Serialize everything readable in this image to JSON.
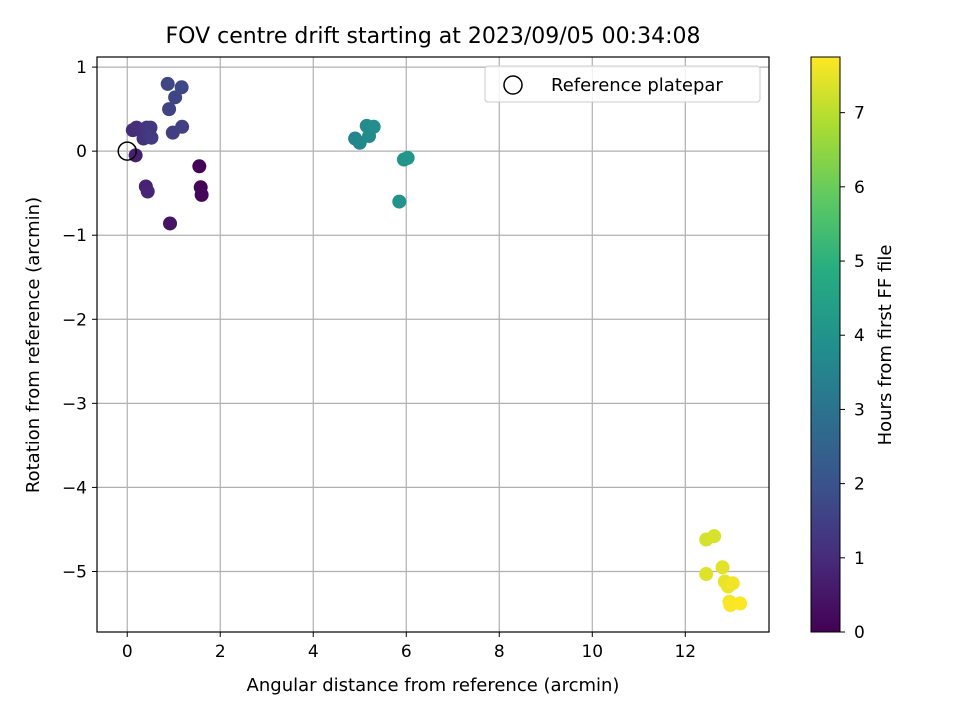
{
  "chart_data": {
    "type": "scatter",
    "title": "FOV centre drift starting at 2023/09/05 00:34:08",
    "xlabel": "Angular distance from reference (arcmin)",
    "ylabel": "Rotation from reference (arcmin)",
    "xlim": [
      -0.65,
      13.8
    ],
    "ylim": [
      -5.72,
      1.12
    ],
    "xticks": [
      0,
      2,
      4,
      6,
      8,
      10,
      12
    ],
    "yticks": [
      1,
      0,
      -1,
      -2,
      -3,
      -4,
      -5
    ],
    "grid": true,
    "legend": {
      "placement": "top-right",
      "entries": [
        "Reference platepar"
      ]
    },
    "reference_point": {
      "label": "Reference platepar",
      "x": 0,
      "y": 0
    },
    "colorbar": {
      "label": "Hours from first FF file",
      "colormap": "viridis",
      "range": [
        0,
        7.75
      ],
      "ticks": [
        0,
        1,
        2,
        3,
        4,
        5,
        6,
        7
      ]
    },
    "points": [
      {
        "x": 1.55,
        "y": -0.18,
        "c": 0.05
      },
      {
        "x": 1.58,
        "y": -0.43,
        "c": 0.1
      },
      {
        "x": 1.6,
        "y": -0.52,
        "c": 0.15
      },
      {
        "x": 0.92,
        "y": -0.86,
        "c": 0.45
      },
      {
        "x": 0.18,
        "y": -0.05,
        "c": 0.7
      },
      {
        "x": 0.4,
        "y": -0.42,
        "c": 0.8
      },
      {
        "x": 0.44,
        "y": -0.48,
        "c": 0.85
      },
      {
        "x": 0.12,
        "y": 0.25,
        "c": 1.0
      },
      {
        "x": 0.2,
        "y": 0.28,
        "c": 1.05
      },
      {
        "x": 0.3,
        "y": 0.24,
        "c": 1.1
      },
      {
        "x": 0.35,
        "y": 0.15,
        "c": 1.15
      },
      {
        "x": 0.42,
        "y": 0.28,
        "c": 1.2
      },
      {
        "x": 0.48,
        "y": 0.2,
        "c": 1.25
      },
      {
        "x": 0.5,
        "y": 0.28,
        "c": 1.3
      },
      {
        "x": 0.52,
        "y": 0.16,
        "c": 1.35
      },
      {
        "x": 0.98,
        "y": 0.22,
        "c": 1.45
      },
      {
        "x": 1.18,
        "y": 0.29,
        "c": 1.5
      },
      {
        "x": 0.9,
        "y": 0.5,
        "c": 1.55
      },
      {
        "x": 1.03,
        "y": 0.64,
        "c": 1.6
      },
      {
        "x": 0.87,
        "y": 0.8,
        "c": 1.65
      },
      {
        "x": 1.17,
        "y": 0.76,
        "c": 1.7
      },
      {
        "x": 4.9,
        "y": 0.15,
        "c": 3.55
      },
      {
        "x": 5.0,
        "y": 0.1,
        "c": 3.6
      },
      {
        "x": 5.15,
        "y": 0.3,
        "c": 3.7
      },
      {
        "x": 5.2,
        "y": 0.18,
        "c": 3.75
      },
      {
        "x": 5.3,
        "y": 0.29,
        "c": 3.8
      },
      {
        "x": 5.85,
        "y": -0.6,
        "c": 4.0
      },
      {
        "x": 5.95,
        "y": -0.1,
        "c": 4.05
      },
      {
        "x": 6.03,
        "y": -0.08,
        "c": 4.1
      },
      {
        "x": 12.45,
        "y": -4.62,
        "c": 7.3
      },
      {
        "x": 12.62,
        "y": -4.58,
        "c": 7.35
      },
      {
        "x": 12.45,
        "y": -5.03,
        "c": 7.4
      },
      {
        "x": 12.8,
        "y": -4.95,
        "c": 7.45
      },
      {
        "x": 12.85,
        "y": -5.12,
        "c": 7.5
      },
      {
        "x": 12.92,
        "y": -5.18,
        "c": 7.55
      },
      {
        "x": 13.02,
        "y": -5.14,
        "c": 7.6
      },
      {
        "x": 12.95,
        "y": -5.36,
        "c": 7.65
      },
      {
        "x": 12.97,
        "y": -5.4,
        "c": 7.7
      },
      {
        "x": 13.18,
        "y": -5.38,
        "c": 7.75
      }
    ]
  }
}
